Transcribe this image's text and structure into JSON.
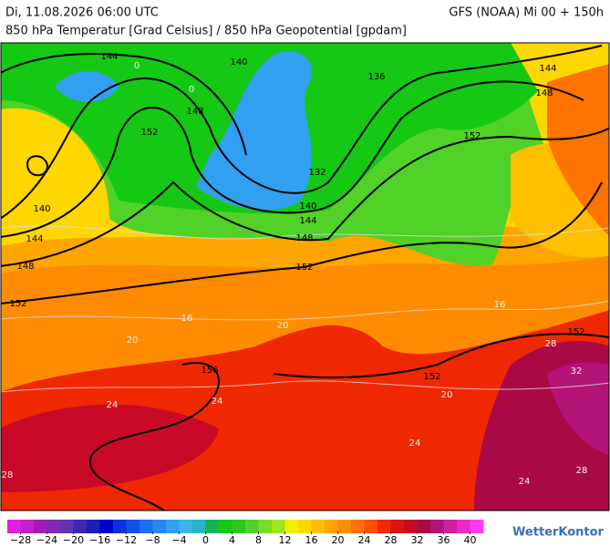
{
  "header": {
    "datetime": "Di, 11.08.2026 06:00 UTC",
    "model": "GFS (NOAA) Mi 00 + 150h",
    "subtitle": "850 hPa Temperatur [Grad Celsius] / 850 hPa Geopotential [gpdam]"
  },
  "map": {
    "isohypse_labels": [
      144,
      140,
      136,
      144,
      148,
      148,
      152,
      152,
      132,
      140,
      144,
      140,
      144,
      148,
      148,
      152,
      152,
      156,
      152,
      152
    ],
    "isotherm_labels": [
      24,
      24,
      24,
      24,
      28,
      28,
      28,
      32,
      20,
      20,
      20,
      16,
      16,
      0,
      0
    ]
  },
  "colorbar": {
    "range": [
      -30,
      42
    ],
    "colors": [
      "#e020e0",
      "#c81ec8",
      "#a01eb4",
      "#8228b4",
      "#6432b4",
      "#3c28b4",
      "#1e1eb4",
      "#0000c8",
      "#0a32dc",
      "#1450e6",
      "#1e6ef0",
      "#2888f0",
      "#32a0f0",
      "#3cb4e6",
      "#28b4c8",
      "#14b450",
      "#14c814",
      "#28c81e",
      "#50d228",
      "#78dc28",
      "#a0e61e",
      "#f0f000",
      "#ffd700",
      "#ffbe00",
      "#ffa500",
      "#ff8c00",
      "#ff7300",
      "#ff5000",
      "#f02800",
      "#dc1414",
      "#c80a28",
      "#aa0a46",
      "#b41478",
      "#d21ea0",
      "#f028c8",
      "#ff3cf0"
    ],
    "ticks": [
      {
        "value": -28,
        "label": "−28"
      },
      {
        "value": -24,
        "label": "−24"
      },
      {
        "value": -20,
        "label": "−20"
      },
      {
        "value": -16,
        "label": "−16"
      },
      {
        "value": -12,
        "label": "−12"
      },
      {
        "value": -8,
        "label": "−8"
      },
      {
        "value": -4,
        "label": "−4"
      },
      0,
      4,
      8,
      12,
      16,
      20,
      24,
      28,
      32,
      36,
      40
    ]
  },
  "brand": "WetterKontor"
}
